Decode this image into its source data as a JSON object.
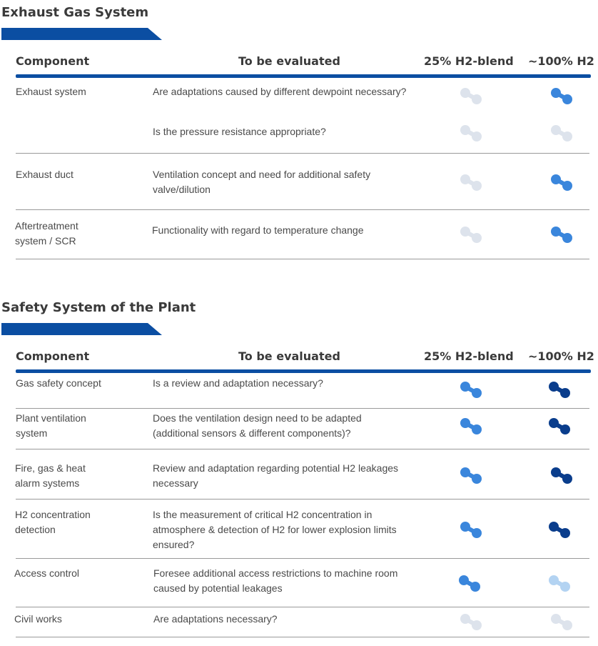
{
  "sections": [
    {
      "title": "Exhaust Gas System",
      "headers": {
        "component": "Component",
        "evaluate": "To be evaluated",
        "blend": "25% H2-blend",
        "h2": "~100% H2"
      },
      "rows": [
        {
          "component": "Exhaust system",
          "evaluate": "Are adaptations caused by different dewpoint necessary?",
          "blend_level": "none",
          "h2_level": "medium"
        },
        {
          "component": "",
          "evaluate": "Is the pressure resistance appropriate?",
          "blend_level": "none",
          "h2_level": "none"
        },
        {
          "component": "Exhaust duct",
          "evaluate": "Ventilation concept and need for additional safety valve/dilution",
          "blend_level": "none",
          "h2_level": "medium"
        },
        {
          "component": "Aftertreatment system / SCR",
          "evaluate": "Functionality with regard to temperature change",
          "blend_level": "none",
          "h2_level": "medium"
        }
      ]
    },
    {
      "title": "Safety System of the Plant",
      "headers": {
        "component": "Component",
        "evaluate": "To be evaluated",
        "blend": "25% H2-blend",
        "h2": "~100% H2"
      },
      "rows": [
        {
          "component": "Gas safety concept",
          "evaluate": "Is a review and adaptation necessary?",
          "blend_level": "medium",
          "h2_level": "high"
        },
        {
          "component": "Plant ventilation system",
          "evaluate": "Does the ventilation design need to be adapted (additional sensors & different components)?",
          "blend_level": "medium",
          "h2_level": "high"
        },
        {
          "component": "Fire, gas & heat alarm systems",
          "evaluate": "Review and adaptation regarding potential H2 leakages necessary",
          "blend_level": "medium",
          "h2_level": "high"
        },
        {
          "component": "H2 concentration detection",
          "evaluate": "Is the measurement of critical H2 concentration in atmosphere & detection of H2 for lower explosion limits ensured?",
          "blend_level": "medium",
          "h2_level": "high"
        },
        {
          "component": "Access control",
          "evaluate": "Foresee additional access restrictions to machine room caused by potential leakages",
          "blend_level": "medium",
          "h2_level": "low"
        },
        {
          "component": "Civil works",
          "evaluate": "Are adaptations necessary?",
          "blend_level": "none",
          "h2_level": "none"
        }
      ]
    }
  ],
  "level_colors": {
    "none": "#dde3ec",
    "low": "#b3d3f2",
    "medium": "#3a86dc",
    "high": "#0a3d8c"
  },
  "icon_name": "h2-molecule-icon"
}
